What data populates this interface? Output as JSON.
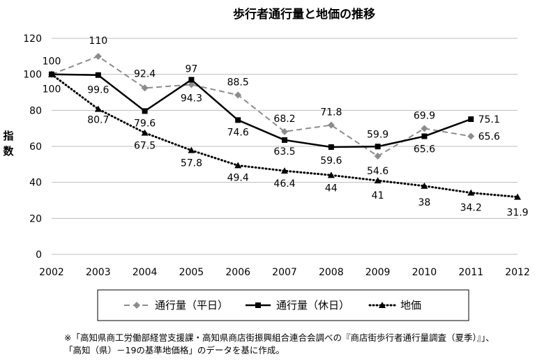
{
  "chart_data": {
    "type": "line",
    "title": "歩行者通行量と地価の推移",
    "ylabel": "指数",
    "xlabel": "",
    "x": [
      "2002",
      "2003",
      "2004",
      "2005",
      "2006",
      "2007",
      "2008",
      "2009",
      "2010",
      "2011",
      "2012"
    ],
    "ylim": [
      0,
      120
    ],
    "yticks": [
      0,
      20,
      40,
      60,
      80,
      100,
      120
    ],
    "grid": true,
    "legend_position": "bottom",
    "series": [
      {
        "name": "通行量（平日）",
        "values": [
          100,
          110,
          92.4,
          94.3,
          88.5,
          68.2,
          71.8,
          54.6,
          69.9,
          65.6,
          null
        ],
        "color": "#8c8c8c",
        "line_style": "dashed",
        "marker": "diamond"
      },
      {
        "name": "通行量（休日）",
        "values": [
          100,
          99.6,
          79.6,
          97,
          74.6,
          63.5,
          59.6,
          59.9,
          65.6,
          75.1,
          null
        ],
        "color": "#000000",
        "line_style": "solid",
        "marker": "square"
      },
      {
        "name": "地価",
        "values": [
          100,
          80.7,
          67.5,
          57.8,
          49.4,
          46.4,
          44,
          41,
          38,
          34.2,
          31.9
        ],
        "color": "#000000",
        "line_style": "dotted",
        "marker": "triangle"
      }
    ],
    "data_labels": [
      {
        "text": "100",
        "x": "2002",
        "y": 100
      },
      {
        "text": "100",
        "x": "2002",
        "y": 100
      },
      {
        "text": "110",
        "x": "2003",
        "y": 110
      },
      {
        "text": "99.6",
        "x": "2003",
        "y": 99.6
      },
      {
        "text": "80.7",
        "x": "2003",
        "y": 80.7
      },
      {
        "text": "92.4",
        "x": "2004",
        "y": 92.4
      },
      {
        "text": "79.6",
        "x": "2004",
        "y": 79.6
      },
      {
        "text": "67.5",
        "x": "2004",
        "y": 67.5
      },
      {
        "text": "97",
        "x": "2005",
        "y": 97
      },
      {
        "text": "94.3",
        "x": "2005",
        "y": 94.3
      },
      {
        "text": "57.8",
        "x": "2005",
        "y": 57.8
      },
      {
        "text": "88.5",
        "x": "2006",
        "y": 88.5
      },
      {
        "text": "74.6",
        "x": "2006",
        "y": 74.6
      },
      {
        "text": "49.4",
        "x": "2006",
        "y": 49.4
      },
      {
        "text": "68.2",
        "x": "2007",
        "y": 68.2
      },
      {
        "text": "63.5",
        "x": "2007",
        "y": 63.5
      },
      {
        "text": "46.4",
        "x": "2007",
        "y": 46.4
      },
      {
        "text": "71.8",
        "x": "2008",
        "y": 71.8
      },
      {
        "text": "59.6",
        "x": "2008",
        "y": 59.6
      },
      {
        "text": "44",
        "x": "2008",
        "y": 44
      },
      {
        "text": "59.9",
        "x": "2009",
        "y": 59.9
      },
      {
        "text": "54.6",
        "x": "2009",
        "y": 54.6
      },
      {
        "text": "41",
        "x": "2009",
        "y": 41
      },
      {
        "text": "69.9",
        "x": "2010",
        "y": 69.9
      },
      {
        "text": "65.6",
        "x": "2010",
        "y": 65.6
      },
      {
        "text": "38",
        "x": "2010",
        "y": 38
      },
      {
        "text": "75.1",
        "x": "2011",
        "y": 75.1
      },
      {
        "text": "65.6",
        "x": "2011",
        "y": 65.6
      },
      {
        "text": "34.2",
        "x": "2011",
        "y": 34.2
      },
      {
        "text": "31.9",
        "x": "2012",
        "y": 31.9
      }
    ]
  },
  "notes": [
    "※「高知県商工労働部経営支援課・高知県商店街振興組合連合会調べの『商店街歩行者通行量調査（夏季）』」、",
    "「高知（県）－19の基準地価格」のデータを基に作成。"
  ]
}
